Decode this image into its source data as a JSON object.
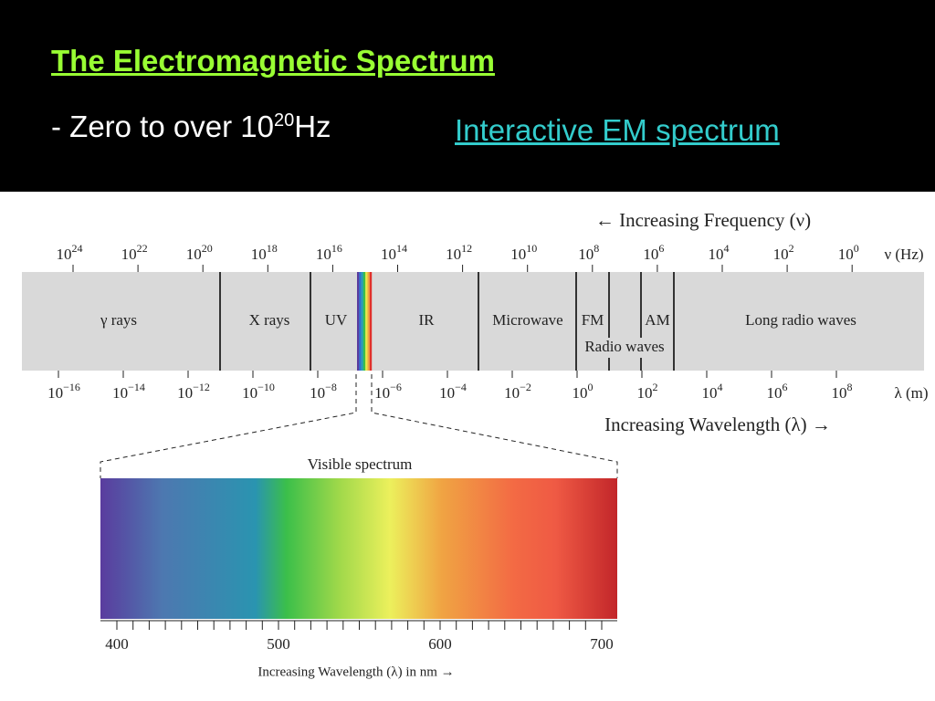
{
  "slide": {
    "title": "The Electromagnetic Spectrum",
    "subtitle": {
      "text": "- Zero to over 10",
      "superscript": "20",
      "unit": "Hz"
    },
    "link": "Interactive EM spectrum"
  },
  "diagram": {
    "frequency_label": "← Increasing Frequency (ν)",
    "frequency_ticks": {
      "base": "10",
      "exponents": [
        "24",
        "22",
        "20",
        "18",
        "16",
        "14",
        "12",
        "10",
        "8",
        "6",
        "4",
        "2",
        "0"
      ],
      "unit": "ν (Hz)"
    },
    "bands": [
      "γ rays",
      "X rays",
      "UV",
      "IR",
      "Microwave",
      "FM",
      "AM",
      "Long radio waves"
    ],
    "radio_label": "Radio waves",
    "wavelength_ticks": {
      "base": "10",
      "exponents": [
        "−16",
        "−14",
        "−12",
        "−10",
        "−8",
        "−6",
        "−4",
        "−2",
        "0",
        "2",
        "4",
        "6",
        "8"
      ],
      "unit": "λ (m)"
    },
    "wavelength_label": "Increasing Wavelength (λ) →",
    "visible": {
      "title": "Visible spectrum",
      "ticks": [
        400,
        500,
        600,
        700
      ],
      "axis_label": "Increasing Wavelength (λ) in nm →"
    }
  }
}
